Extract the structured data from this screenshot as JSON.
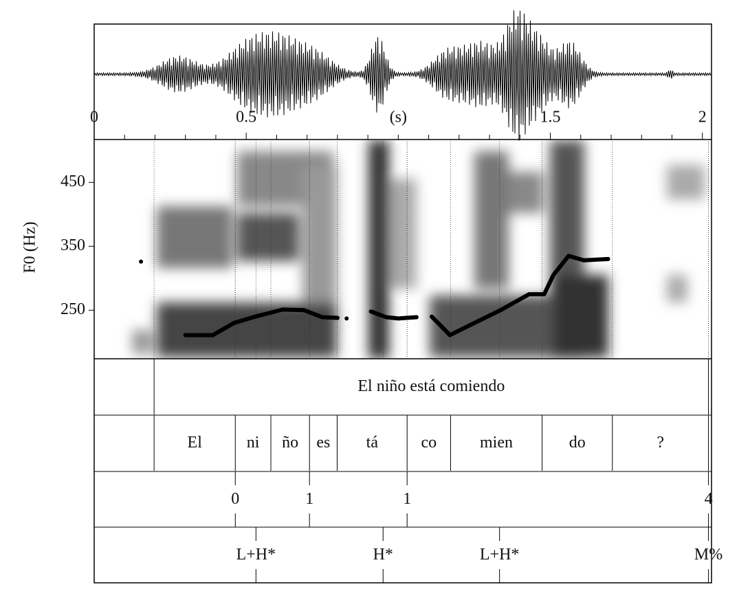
{
  "chart_data": {
    "type": "line",
    "ylabel": "F0 (Hz)",
    "xlabel": "(s)",
    "xlim": [
      0,
      2.03
    ],
    "xticks": [
      0,
      0.5,
      1.5,
      2
    ],
    "xminorticks": [
      0.1,
      0.2,
      0.3,
      0.4,
      0.6,
      0.7,
      0.8,
      0.9,
      1,
      1.1,
      1.2,
      1.3,
      1.4,
      1.6,
      1.7,
      1.8,
      1.9
    ],
    "ylim": [
      174,
      517
    ],
    "yticks": [
      250,
      350,
      450
    ],
    "color": "#000000",
    "x": [
      0.154,
      null,
      0.3,
      0.39,
      0.46,
      0.53,
      0.62,
      0.69,
      0.75,
      0.8,
      null,
      0.83,
      null,
      0.91,
      0.96,
      1.0,
      1.06,
      null,
      1.11,
      1.17,
      1.25,
      1.34,
      1.43,
      1.48,
      1.51,
      1.56,
      1.61,
      1.69
    ],
    "values": [
      326,
      null,
      211,
      211,
      230,
      240,
      251,
      250,
      239,
      238,
      null,
      237,
      null,
      248,
      239,
      237,
      239,
      null,
      240,
      211,
      230,
      251,
      275,
      275,
      305,
      335,
      328,
      330
    ],
    "tiers": [
      {
        "type": "interval",
        "boundaries": [
          0.197,
          2.02
        ],
        "labels": [
          "El niño está comiendo"
        ]
      },
      {
        "type": "interval",
        "boundaries": [
          0.197,
          0.464,
          0.581,
          0.708,
          0.799,
          1.029,
          1.172,
          1.473,
          1.704,
          2.02
        ],
        "labels": [
          "El",
          "ni",
          "ño",
          "es",
          "tá",
          "co",
          "mien",
          "do",
          "?"
        ]
      },
      {
        "type": "point",
        "times": [
          0.464,
          0.708,
          1.029,
          2.02
        ],
        "labels": [
          "0",
          "1",
          "1",
          "4"
        ]
      },
      {
        "type": "point",
        "times": [
          0.532,
          0.95,
          1.333,
          2.02
        ],
        "labels": [
          "L+H*",
          "H*",
          "L+H*",
          "M%"
        ]
      }
    ]
  }
}
